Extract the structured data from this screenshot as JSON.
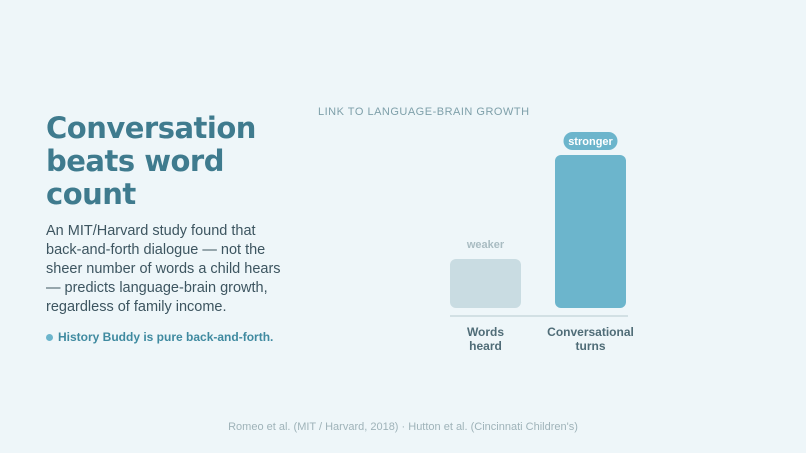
{
  "header": {
    "title": "Conversation beats word count",
    "body": "An MIT/Harvard study found that back-and-forth dialogue — not the sheer number of words a child hears — predicts language-brain growth, regardless of family income.",
    "bullet": "History Buddy is pure back-and-forth."
  },
  "chart_data": {
    "type": "bar",
    "title": "LINK TO LANGUAGE-BRAIN GROWTH",
    "categories": [
      "Words heard",
      "Conversational turns"
    ],
    "values": [
      32,
      100
    ],
    "colors": [
      "#c9dce2",
      "#6cb5cc"
    ],
    "annotations": [
      "weaker",
      "stronger"
    ],
    "ylim": [
      0,
      100
    ]
  },
  "footer": "Romeo et al. (MIT / Harvard, 2018) · Hutton et al. (Cincinnati Children's)"
}
